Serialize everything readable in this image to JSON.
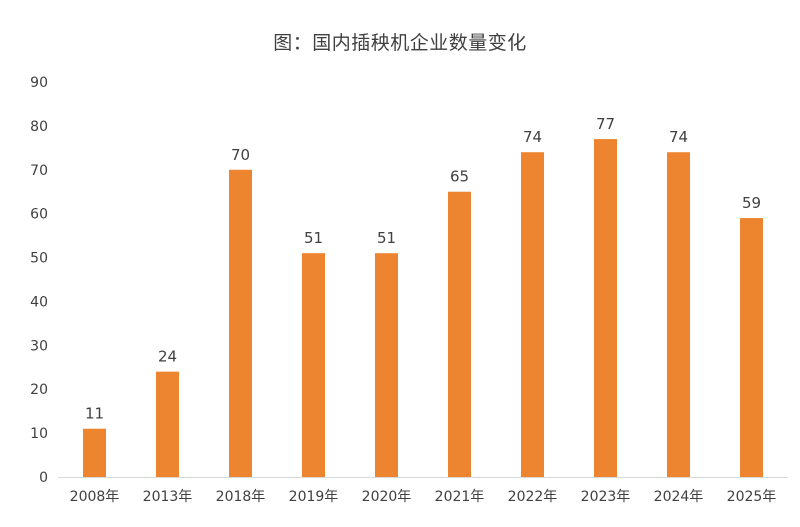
{
  "chart_data": {
    "type": "bar",
    "title": "图：国内插秧机企业数量变化",
    "categories": [
      "2008年",
      "2013年",
      "2018年",
      "2019年",
      "2020年",
      "2021年",
      "2022年",
      "2023年",
      "2024年",
      "2025年"
    ],
    "values": [
      11,
      24,
      70,
      51,
      51,
      65,
      74,
      77,
      74,
      59
    ],
    "ylim": [
      0,
      90
    ],
    "yticks": [
      0,
      10,
      20,
      30,
      40,
      50,
      60,
      70,
      80,
      90
    ],
    "grid": false,
    "data_labels": true,
    "bar_color": "#ED8530",
    "text_color": "#404040",
    "axis_color": "#D9D9D9"
  }
}
